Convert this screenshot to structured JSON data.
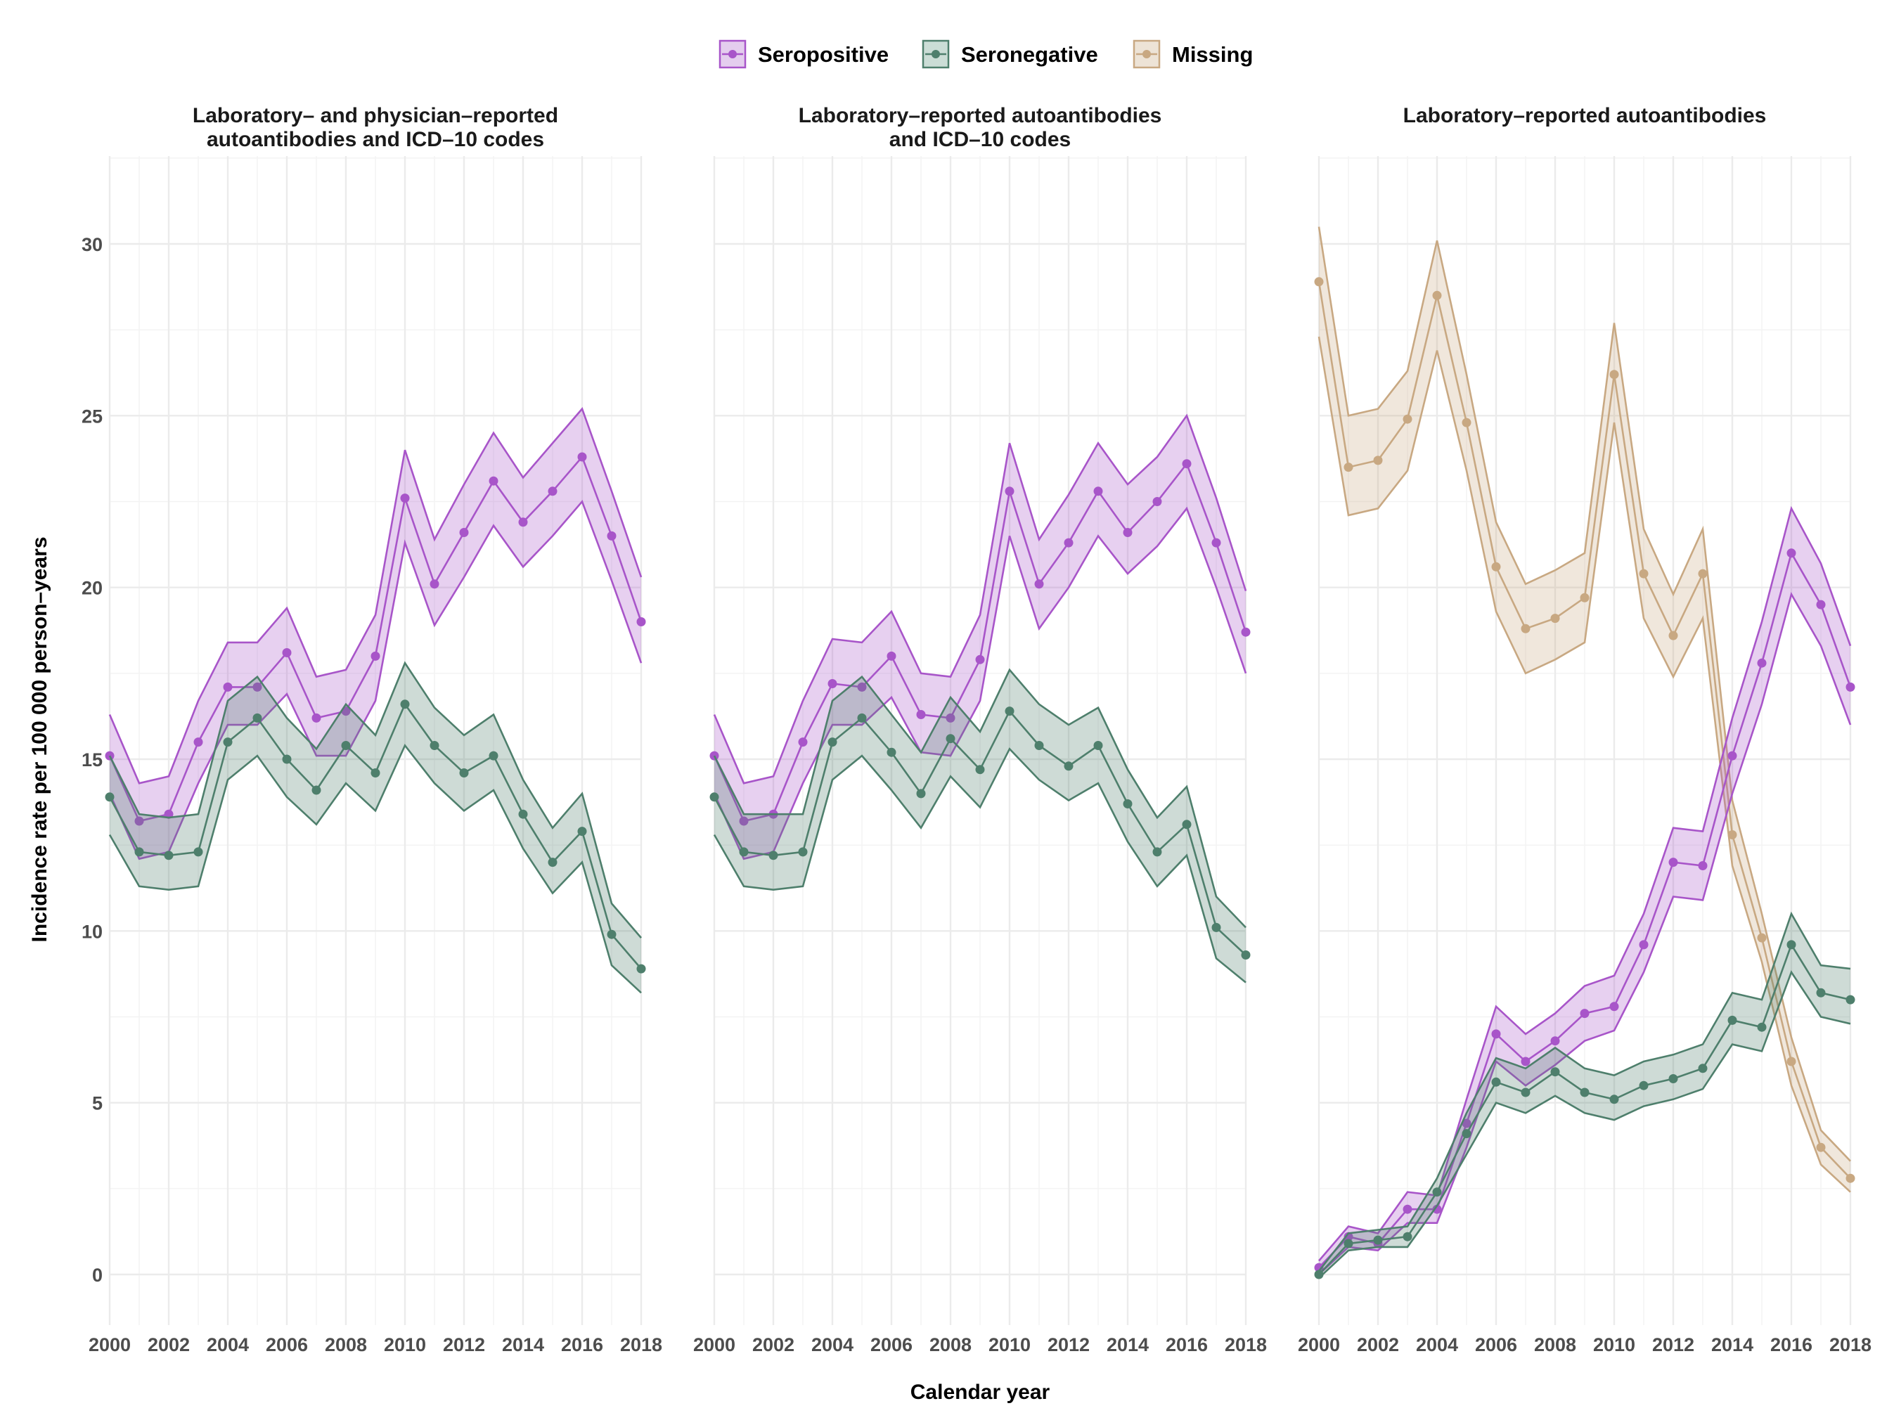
{
  "chart_data": {
    "type": "line",
    "legend": {
      "position": "top",
      "entries": [
        {
          "name": "Seropositive",
          "color": "#A855C9",
          "fill": "#E4CDEE"
        },
        {
          "name": "Seronegative",
          "color": "#4E7F6C",
          "fill": "#CBDDD6"
        },
        {
          "name": "Missing",
          "color": "#C8A882",
          "fill": "#EDE3D6"
        }
      ]
    },
    "xlabel": "Calendar year",
    "ylabel": "Incidence rate per 100 000 person–years",
    "x": [
      2000,
      2001,
      2002,
      2003,
      2004,
      2005,
      2006,
      2007,
      2008,
      2009,
      2010,
      2011,
      2012,
      2013,
      2014,
      2015,
      2016,
      2017,
      2018
    ],
    "xticks": [
      "2000",
      "2002",
      "2004",
      "2006",
      "2008",
      "2010",
      "2012",
      "2014",
      "2016",
      "2018"
    ],
    "xlim": [
      2000,
      2018
    ],
    "ylim": [
      -1.5,
      32.5
    ],
    "yticks": [
      "0",
      "5",
      "10",
      "15",
      "20",
      "25",
      "30"
    ],
    "grid": true,
    "panels": [
      {
        "title_lines": [
          "Laboratory– and physician–reported",
          "autoantibodies and ICD–10 codes"
        ],
        "series": [
          {
            "name": "Seropositive",
            "values": [
              15.1,
              13.2,
              13.4,
              15.5,
              17.1,
              17.1,
              18.1,
              16.2,
              16.4,
              18.0,
              22.6,
              20.1,
              21.6,
              23.1,
              21.9,
              22.8,
              23.8,
              21.5,
              19.0
            ],
            "lower": [
              14.0,
              12.1,
              12.3,
              14.3,
              16.0,
              16.0,
              16.9,
              15.1,
              15.1,
              16.7,
              21.3,
              18.9,
              20.3,
              21.8,
              20.6,
              21.5,
              22.5,
              20.2,
              17.8
            ],
            "upper": [
              16.3,
              14.3,
              14.5,
              16.7,
              18.4,
              18.4,
              19.4,
              17.4,
              17.6,
              19.2,
              24.0,
              21.4,
              23.0,
              24.5,
              23.2,
              24.2,
              25.2,
              22.8,
              20.3
            ]
          },
          {
            "name": "Seronegative",
            "values": [
              13.9,
              12.3,
              12.2,
              12.3,
              15.5,
              16.2,
              15.0,
              14.1,
              15.4,
              14.6,
              16.6,
              15.4,
              14.6,
              15.1,
              13.4,
              12.0,
              12.9,
              9.9,
              8.9
            ],
            "lower": [
              12.8,
              11.3,
              11.2,
              11.3,
              14.4,
              15.1,
              13.9,
              13.1,
              14.3,
              13.5,
              15.4,
              14.3,
              13.5,
              14.1,
              12.4,
              11.1,
              12.0,
              9.0,
              8.2
            ],
            "upper": [
              15.1,
              13.4,
              13.3,
              13.4,
              16.7,
              17.4,
              16.2,
              15.3,
              16.6,
              15.7,
              17.8,
              16.5,
              15.7,
              16.3,
              14.4,
              13.0,
              14.0,
              10.8,
              9.8
            ]
          }
        ]
      },
      {
        "title_lines": [
          "Laboratory–reported autoantibodies",
          "and ICD–10 codes"
        ],
        "series": [
          {
            "name": "Seropositive",
            "values": [
              15.1,
              13.2,
              13.4,
              15.5,
              17.2,
              17.1,
              18.0,
              16.3,
              16.2,
              17.9,
              22.8,
              20.1,
              21.3,
              22.8,
              21.6,
              22.5,
              23.6,
              21.3,
              18.7
            ],
            "lower": [
              14.0,
              12.1,
              12.3,
              14.3,
              16.0,
              16.0,
              16.8,
              15.2,
              15.1,
              16.7,
              21.5,
              18.8,
              20.0,
              21.5,
              20.4,
              21.2,
              22.3,
              20.0,
              17.5
            ],
            "upper": [
              16.3,
              14.3,
              14.5,
              16.7,
              18.5,
              18.4,
              19.3,
              17.5,
              17.4,
              19.2,
              24.2,
              21.4,
              22.7,
              24.2,
              23.0,
              23.8,
              25.0,
              22.6,
              19.9
            ]
          },
          {
            "name": "Seronegative",
            "values": [
              13.9,
              12.3,
              12.2,
              12.3,
              15.5,
              16.2,
              15.2,
              14.0,
              15.6,
              14.7,
              16.4,
              15.4,
              14.8,
              15.4,
              13.7,
              12.3,
              13.1,
              10.1,
              9.3
            ],
            "lower": [
              12.8,
              11.3,
              11.2,
              11.3,
              14.4,
              15.1,
              14.1,
              13.0,
              14.5,
              13.6,
              15.3,
              14.4,
              13.8,
              14.3,
              12.6,
              11.3,
              12.2,
              9.2,
              8.5
            ],
            "upper": [
              15.1,
              13.4,
              13.4,
              13.4,
              16.7,
              17.4,
              16.3,
              15.2,
              16.8,
              15.8,
              17.6,
              16.6,
              16.0,
              16.5,
              14.7,
              13.3,
              14.2,
              11.0,
              10.1
            ]
          }
        ]
      },
      {
        "title_lines": [
          "Laboratory–reported autoantibodies"
        ],
        "series": [
          {
            "name": "Missing",
            "values": [
              28.9,
              23.5,
              23.7,
              24.9,
              28.5,
              24.8,
              20.6,
              18.8,
              19.1,
              19.7,
              26.2,
              20.4,
              18.6,
              20.4,
              12.8,
              9.8,
              6.2,
              3.7,
              2.8
            ],
            "lower": [
              27.3,
              22.1,
              22.3,
              23.4,
              26.9,
              23.4,
              19.3,
              17.5,
              17.9,
              18.4,
              24.8,
              19.1,
              17.4,
              19.1,
              11.9,
              9.1,
              5.5,
              3.2,
              2.4
            ],
            "upper": [
              30.5,
              25.0,
              25.2,
              26.3,
              30.1,
              26.2,
              21.9,
              20.1,
              20.5,
              21.0,
              27.7,
              21.7,
              19.8,
              21.7,
              13.8,
              10.5,
              6.9,
              4.2,
              3.3
            ]
          },
          {
            "name": "Seropositive",
            "values": [
              0.2,
              1.1,
              0.9,
              1.9,
              1.9,
              4.4,
              7.0,
              6.2,
              6.8,
              7.6,
              7.8,
              9.6,
              12.0,
              11.9,
              15.1,
              17.8,
              21.0,
              19.5,
              17.1
            ],
            "lower": [
              0.0,
              0.8,
              0.7,
              1.5,
              1.5,
              3.7,
              6.2,
              5.5,
              6.1,
              6.8,
              7.1,
              8.8,
              11.0,
              10.9,
              14.0,
              16.6,
              19.8,
              18.3,
              16.0
            ],
            "upper": [
              0.4,
              1.4,
              1.2,
              2.4,
              2.3,
              5.1,
              7.8,
              7.0,
              7.6,
              8.4,
              8.7,
              10.5,
              13.0,
              12.9,
              16.2,
              19.0,
              22.3,
              20.7,
              18.3
            ]
          },
          {
            "name": "Seronegative",
            "values": [
              0.0,
              0.9,
              1.0,
              1.1,
              2.4,
              4.1,
              5.6,
              5.3,
              5.9,
              5.3,
              5.1,
              5.5,
              5.7,
              6.0,
              7.4,
              7.2,
              9.6,
              8.2,
              8.0
            ],
            "lower": [
              -0.1,
              0.7,
              0.8,
              0.8,
              2.0,
              3.5,
              5.0,
              4.7,
              5.2,
              4.7,
              4.5,
              4.9,
              5.1,
              5.4,
              6.7,
              6.5,
              8.8,
              7.5,
              7.3
            ],
            "upper": [
              0.1,
              1.2,
              1.3,
              1.4,
              2.8,
              4.7,
              6.3,
              6.0,
              6.6,
              6.0,
              5.8,
              6.2,
              6.4,
              6.7,
              8.2,
              8.0,
              10.5,
              9.0,
              8.9
            ]
          }
        ]
      }
    ]
  }
}
